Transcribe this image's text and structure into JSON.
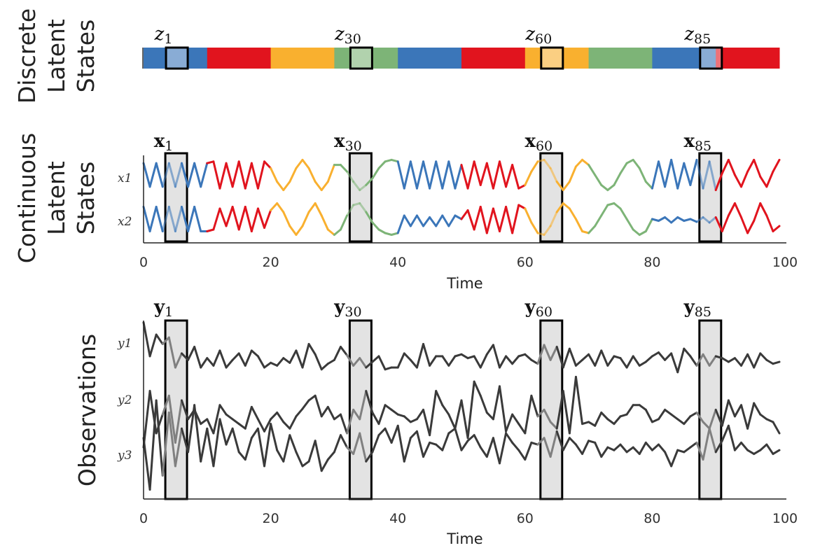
{
  "row_labels": {
    "discrete": [
      "Discrete",
      "Latent",
      "States"
    ],
    "continuous": [
      "Continuous",
      "Latent",
      "States"
    ],
    "observations": [
      "Observations"
    ]
  },
  "var_labels": {
    "x": [
      "x1",
      "x2"
    ],
    "y": [
      "y1",
      "y2",
      "y3"
    ]
  },
  "windows": [
    1,
    30,
    60,
    85
  ],
  "window_labels": {
    "z": [
      "z",
      "z",
      "z",
      "z"
    ],
    "x": [
      "x",
      "x",
      "x",
      "x"
    ],
    "y": [
      "y",
      "y",
      "y",
      "y"
    ],
    "subscripts": [
      "1",
      "30",
      "60",
      "85"
    ]
  },
  "colors": {
    "blue": "#3b76b9",
    "red": "#e1141e",
    "yellow": "#f9b02f",
    "green": "#7db477",
    "observation": "#3a3a3a",
    "highlight_fill": "#e3e3e3"
  },
  "chart_data": [
    {
      "type": "heatmap",
      "title": "",
      "x_range": [
        0,
        100
      ],
      "segments": [
        {
          "start": 0,
          "end": 10,
          "state": "blue"
        },
        {
          "start": 10,
          "end": 20,
          "state": "red"
        },
        {
          "start": 20,
          "end": 30,
          "state": "yellow"
        },
        {
          "start": 30,
          "end": 40,
          "state": "green"
        },
        {
          "start": 40,
          "end": 50,
          "state": "blue"
        },
        {
          "start": 50,
          "end": 60,
          "state": "red"
        },
        {
          "start": 60,
          "end": 70,
          "state": "yellow"
        },
        {
          "start": 70,
          "end": 80,
          "state": "green"
        },
        {
          "start": 80,
          "end": 90,
          "state": "blue"
        },
        {
          "start": 90,
          "end": 100,
          "state": "red"
        }
      ]
    },
    {
      "type": "line",
      "xlabel": "Time",
      "ylabel": "",
      "xlim": [
        0,
        100
      ],
      "xticks": [
        0,
        20,
        40,
        60,
        80,
        100
      ],
      "series": [
        {
          "name": "x1",
          "values": [
            0.85,
            0.15,
            0.85,
            0.15,
            0.85,
            0.15,
            0.85,
            0.15,
            0.85,
            0.15,
            0.85,
            0.9,
            0.1,
            0.85,
            0.15,
            0.9,
            0.1,
            0.85,
            0.1,
            0.9,
            0.7,
            0.3,
            0.05,
            0.3,
            0.7,
            0.95,
            0.7,
            0.3,
            0.05,
            0.3,
            0.8,
            0.8,
            0.6,
            0.3,
            0.05,
            0.2,
            0.4,
            0.7,
            0.9,
            0.95,
            0.9,
            0.1,
            0.9,
            0.1,
            0.9,
            0.1,
            0.9,
            0.1,
            0.9,
            0.1,
            0.8,
            0.1,
            0.9,
            0.2,
            0.85,
            0.1,
            0.9,
            0.15,
            0.8,
            0.1,
            0.2,
            0.6,
            0.9,
            0.95,
            0.7,
            0.3,
            0.05,
            0.3,
            0.75,
            0.95,
            0.8,
            0.5,
            0.2,
            0.05,
            0.2,
            0.55,
            0.85,
            0.95,
            0.7,
            0.3,
            0.1,
            0.9,
            0.15,
            0.95,
            0.1,
            0.85,
            0.2,
            0.95,
            0.1,
            0.9,
            0.05,
            0.55,
            0.95,
            0.5,
            0.15,
            0.6,
            0.95,
            0.45,
            0.15,
            0.6,
            0.95
          ]
        },
        {
          "name": "x2",
          "values": [
            0.85,
            0.15,
            0.85,
            0.15,
            0.85,
            0.15,
            0.85,
            0.15,
            0.85,
            0.15,
            0.15,
            0.2,
            0.8,
            0.3,
            0.85,
            0.2,
            0.85,
            0.15,
            0.8,
            0.25,
            0.75,
            0.95,
            0.7,
            0.3,
            0.05,
            0.3,
            0.7,
            0.95,
            0.6,
            0.2,
            0.05,
            0.2,
            0.6,
            0.9,
            0.95,
            0.7,
            0.4,
            0.2,
            0.1,
            0.05,
            0.1,
            0.6,
            0.3,
            0.6,
            0.3,
            0.55,
            0.3,
            0.6,
            0.3,
            0.6,
            0.5,
            0.75,
            0.2,
            0.85,
            0.1,
            0.8,
            0.15,
            0.85,
            0.1,
            0.9,
            0.8,
            0.4,
            0.1,
            0.05,
            0.3,
            0.7,
            0.95,
            0.8,
            0.5,
            0.15,
            0.1,
            0.3,
            0.6,
            0.9,
            0.95,
            0.8,
            0.5,
            0.2,
            0.05,
            0.15,
            0.5,
            0.45,
            0.55,
            0.4,
            0.55,
            0.45,
            0.5,
            0.42,
            0.55,
            0.4,
            0.55,
            0.15,
            0.6,
            0.95,
            0.55,
            0.1,
            0.45,
            0.95,
            0.6,
            0.15,
            0.3
          ]
        }
      ]
    },
    {
      "type": "line",
      "xlabel": "Time",
      "ylabel": "",
      "xlim": [
        0,
        100
      ],
      "xticks": [
        0,
        20,
        40,
        60,
        80,
        100
      ],
      "series": [
        {
          "name": "y1",
          "values": [
            2.08,
            1.72,
            1.95,
            1.85,
            1.92,
            1.6,
            1.75,
            1.68,
            1.82,
            1.6,
            1.7,
            1.62,
            1.78,
            1.6,
            1.68,
            1.75,
            1.62,
            1.78,
            1.72,
            1.6,
            1.65,
            1.62,
            1.7,
            1.65,
            1.78,
            1.6,
            1.85,
            1.74,
            1.58,
            1.64,
            1.68,
            1.82,
            1.73,
            1.62,
            1.7,
            1.6,
            1.66,
            1.72,
            1.58,
            1.6,
            1.6,
            1.75,
            1.68,
            1.6,
            1.85,
            1.62,
            1.72,
            1.72,
            1.62,
            1.72,
            1.74,
            1.7,
            1.72,
            1.6,
            1.74,
            1.84,
            1.6,
            1.72,
            1.64,
            1.72,
            1.74,
            1.68,
            1.64,
            1.84,
            1.68,
            1.82,
            1.6,
            1.8,
            1.62,
            1.68,
            1.74,
            1.62,
            1.78,
            1.62,
            1.72,
            1.7,
            1.6,
            1.72,
            1.62,
            1.66,
            1.72,
            1.76,
            1.68,
            1.75,
            1.55,
            1.8,
            1.72,
            1.62,
            1.74,
            1.62,
            1.72,
            1.7,
            1.66,
            1.7,
            1.62,
            1.74,
            1.6,
            1.75,
            1.68,
            1.64,
            1.66
          ]
        },
        {
          "name": "y2",
          "values": [
            0.75,
            1.35,
            0.9,
            1.1,
            1.3,
            0.8,
            1.25,
            1.05,
            1.15,
            1.0,
            1.05,
            0.9,
            1.2,
            1.1,
            1.05,
            1.0,
            0.95,
            1.18,
            1.05,
            0.92,
            1.05,
            1.12,
            1.02,
            0.95,
            1.08,
            1.16,
            1.25,
            1.3,
            1.08,
            1.18,
            1.05,
            1.1,
            0.9,
            1.15,
            1.05,
            1.35,
            1.12,
            1.0,
            1.2,
            1.15,
            1.1,
            1.08,
            1.02,
            1.05,
            1.15,
            0.88,
            1.35,
            1.2,
            1.1,
            0.95,
            1.25,
            0.85,
            1.45,
            1.3,
            1.12,
            1.05,
            1.4,
            0.92,
            1.1,
            1.0,
            0.9,
            1.3,
            1.08,
            1.15,
            1.02,
            0.95,
            1.35,
            0.9,
            1.5,
            1.0,
            1.02,
            0.98,
            1.12,
            1.05,
            1.0,
            1.08,
            1.1,
            1.2,
            1.2,
            1.15,
            1.02,
            1.05,
            1.15,
            1.1,
            1.05,
            1.0,
            1.08,
            1.12,
            1.02,
            0.95,
            1.15,
            0.98,
            1.25,
            1.08,
            1.2,
            0.95,
            1.22,
            1.1,
            1.05,
            1.02,
            0.9
          ]
        },
        {
          "name": "y3",
          "values": [
            0.85,
            0.3,
            1.25,
            0.45,
            1.12,
            0.55,
            0.95,
            0.7,
            1.2,
            0.6,
            0.95,
            0.55,
            1.05,
            0.78,
            0.95,
            0.7,
            0.62,
            0.85,
            0.95,
            0.55,
            1.0,
            0.72,
            0.6,
            0.88,
            0.7,
            0.55,
            0.6,
            0.82,
            0.5,
            0.62,
            0.7,
            0.88,
            0.75,
            0.68,
            0.9,
            0.6,
            0.7,
            0.88,
            0.95,
            0.8,
            0.98,
            0.6,
            0.85,
            0.92,
            0.65,
            0.8,
            0.78,
            0.72,
            0.9,
            0.95,
            0.72,
            0.82,
            0.88,
            0.75,
            0.65,
            0.85,
            0.58,
            0.9,
            0.8,
            0.72,
            0.62,
            0.8,
            0.78,
            0.85,
            0.65,
            0.92,
            0.72,
            0.85,
            0.78,
            0.68,
            0.82,
            0.8,
            0.65,
            0.75,
            0.72,
            0.78,
            0.7,
            0.75,
            0.68,
            0.8,
            0.72,
            0.78,
            0.7,
            0.55,
            0.72,
            0.7,
            0.75,
            0.8,
            0.62,
            0.95,
            0.7,
            0.82,
            0.98,
            0.72,
            0.8,
            0.72,
            0.68,
            0.72,
            0.78,
            0.68,
            0.72
          ]
        }
      ]
    }
  ]
}
